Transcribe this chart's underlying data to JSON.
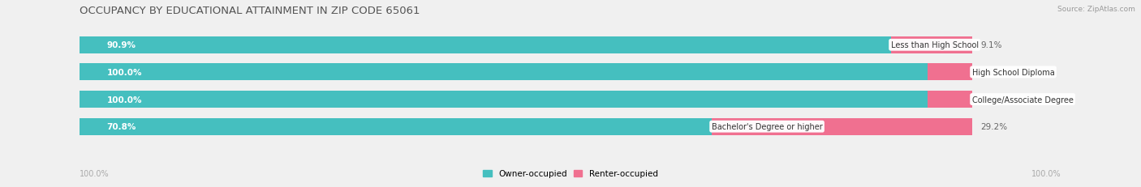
{
  "title": "OCCUPANCY BY EDUCATIONAL ATTAINMENT IN ZIP CODE 65061",
  "source": "Source: ZipAtlas.com",
  "categories": [
    "Less than High School",
    "High School Diploma",
    "College/Associate Degree",
    "Bachelor's Degree or higher"
  ],
  "owner_pct": [
    90.9,
    100.0,
    100.0,
    70.8
  ],
  "renter_pct": [
    9.1,
    0.0,
    0.0,
    29.2
  ],
  "owner_color": "#45BFBF",
  "renter_color": "#F07090",
  "bg_color": "#f0f0f0",
  "bar_bg_color": "#e0e0e0",
  "title_fontsize": 9.5,
  "label_fontsize": 7.5,
  "source_fontsize": 6.5,
  "axis_label_fontsize": 7,
  "bar_height": 0.62,
  "x_left_label": "100.0%",
  "x_right_label": "100.0%",
  "owner_label": "Owner-occupied",
  "renter_label": "Renter-occupied"
}
